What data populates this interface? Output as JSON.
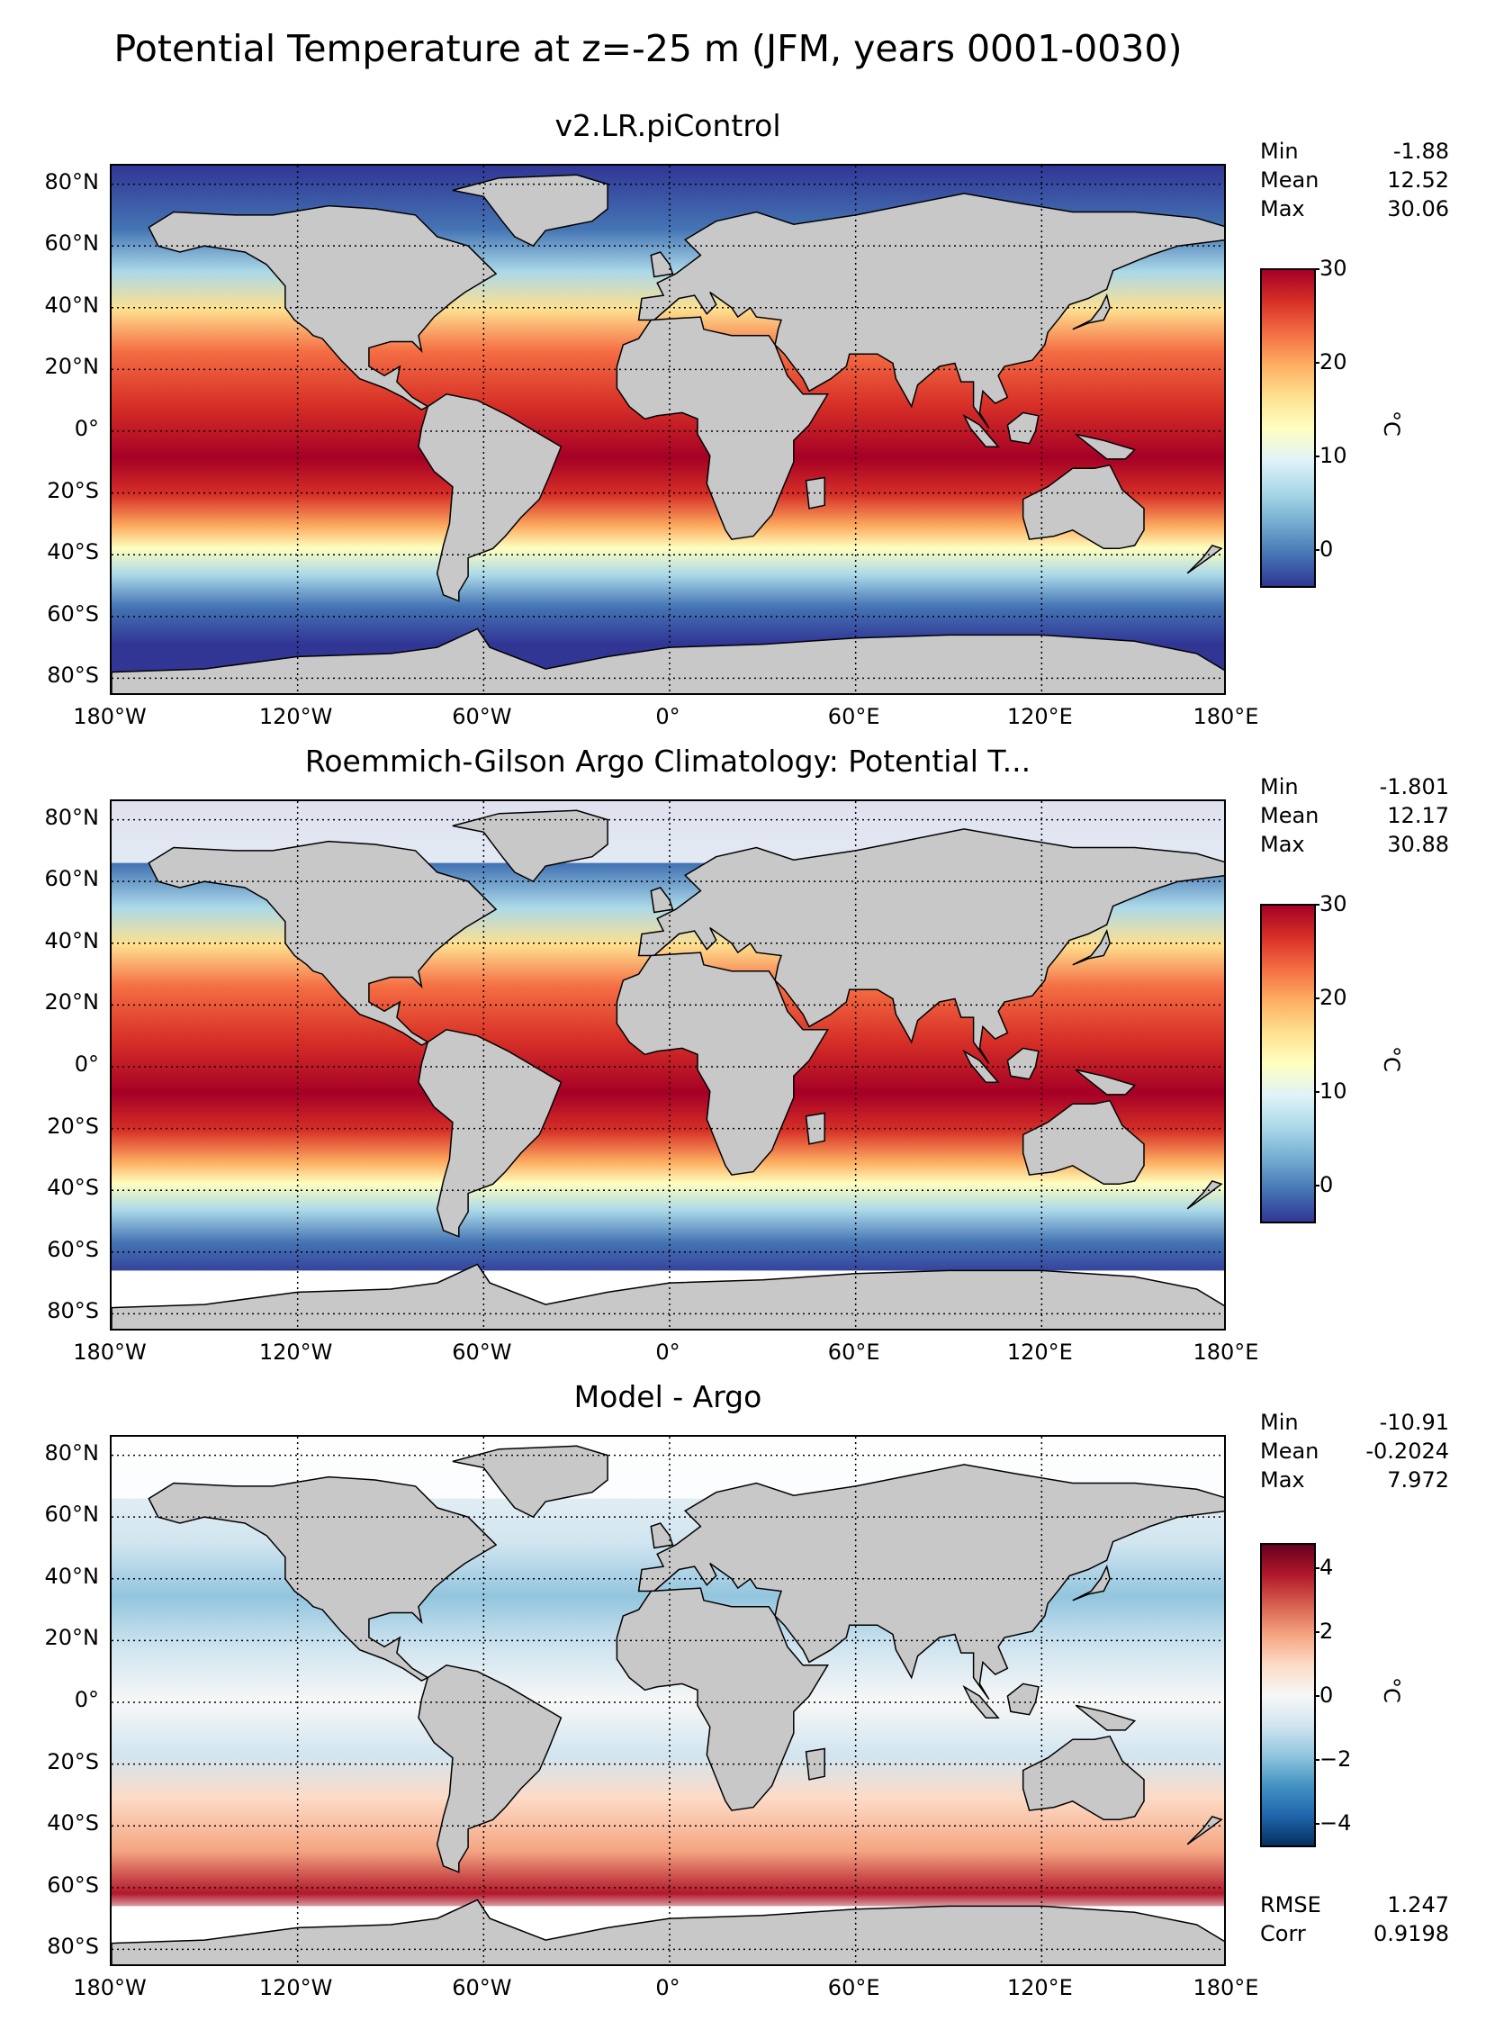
{
  "title": "Potential Temperature at z=-25 m (JFM, years 0001-0030)",
  "lon_ticks": [
    "180°W",
    "120°W",
    "60°W",
    "0°",
    "60°E",
    "120°E",
    "180°E"
  ],
  "lat_ticks": [
    "80°N",
    "60°N",
    "40°N",
    "20°N",
    "0°",
    "20°S",
    "40°S",
    "60°S",
    "80°S"
  ],
  "colors": {
    "land": "#c8c8c8",
    "missing": "#ffffff",
    "rdylbu": [
      "#313695",
      "#4575b4",
      "#74add1",
      "#abd9e9",
      "#e0f3f8",
      "#ffffbf",
      "#fee090",
      "#fdae61",
      "#f46d43",
      "#d73027",
      "#a50026"
    ],
    "rdbu": [
      "#053061",
      "#2166ac",
      "#4393c3",
      "#92c5de",
      "#d1e5f0",
      "#f7f7f7",
      "#fddbc7",
      "#f4a582",
      "#d6604d",
      "#b2182b",
      "#67001f"
    ]
  },
  "panels": [
    {
      "title": "v2.LR.piControl",
      "stats": [
        {
          "label": "Min",
          "value": "-1.88"
        },
        {
          "label": "Mean",
          "value": "12.52"
        },
        {
          "label": "Max",
          "value": "30.06"
        }
      ],
      "colorbar": {
        "ticks": [
          "30",
          "20",
          "10",
          "0"
        ],
        "unit": "°C",
        "colormap": "rdylbu"
      }
    },
    {
      "title": "Roemmich-Gilson Argo Climatology: Potential T...",
      "stats": [
        {
          "label": "Min",
          "value": "-1.801"
        },
        {
          "label": "Mean",
          "value": "12.17"
        },
        {
          "label": "Max",
          "value": "30.88"
        }
      ],
      "colorbar": {
        "ticks": [
          "30",
          "20",
          "10",
          "0"
        ],
        "unit": "°C",
        "colormap": "rdylbu"
      }
    },
    {
      "title": "Model - Argo",
      "stats": [
        {
          "label": "Min",
          "value": "-10.91"
        },
        {
          "label": "Mean",
          "value": "-0.2024"
        },
        {
          "label": "Max",
          "value": "7.972"
        }
      ],
      "colorbar": {
        "ticks": [
          "4",
          "2",
          "0",
          "−2",
          "−4"
        ],
        "unit": "°C",
        "colormap": "rdbu"
      },
      "extra_stats": [
        {
          "label": "RMSE",
          "value": "1.247"
        },
        {
          "label": "Corr",
          "value": "0.9198"
        }
      ]
    }
  ]
}
